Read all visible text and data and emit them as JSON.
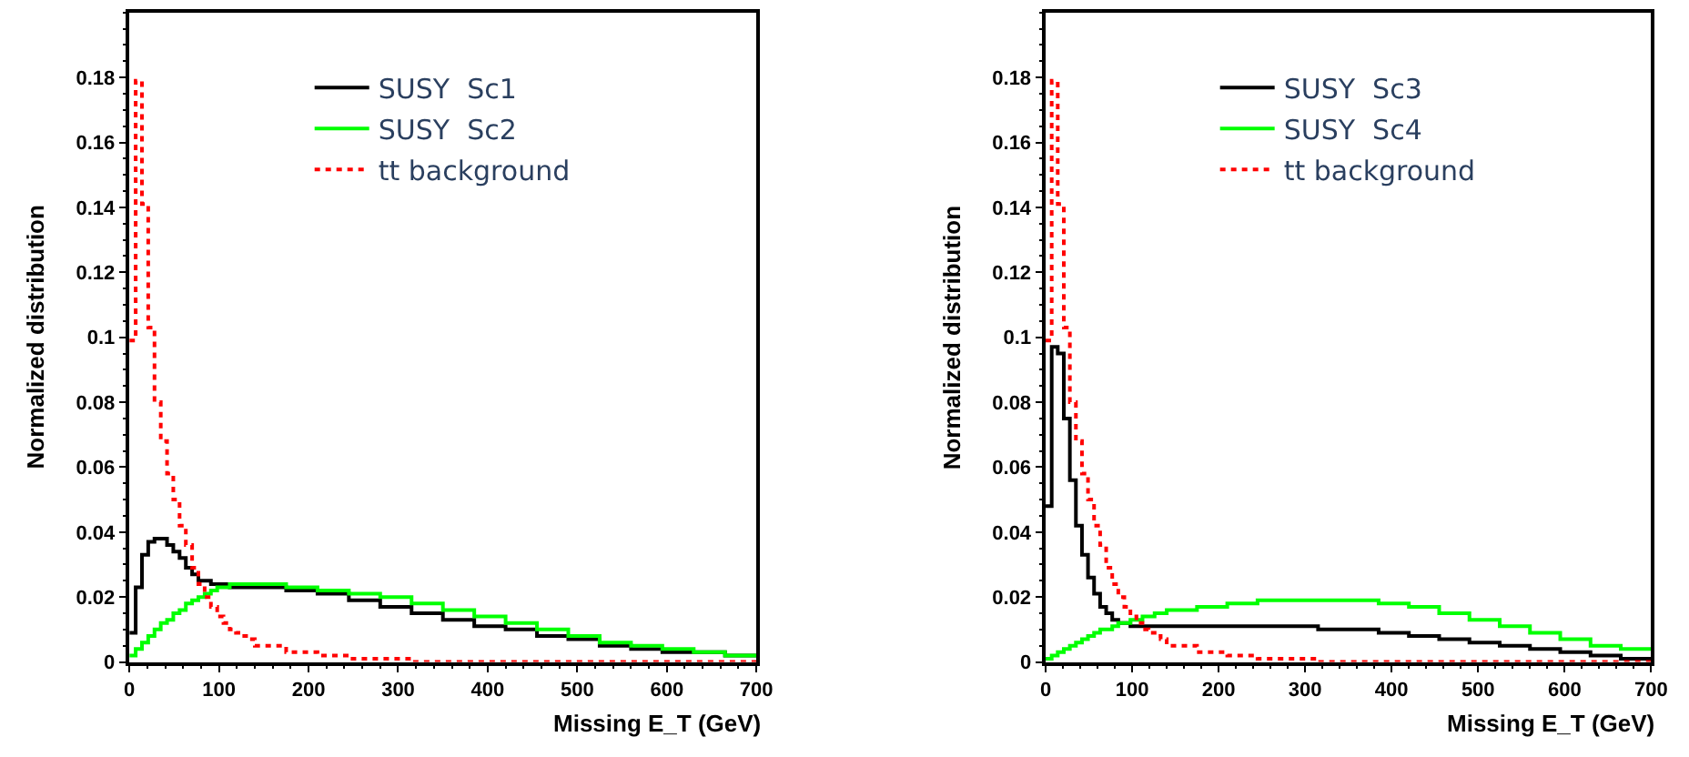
{
  "chart_data": [
    {
      "type": "histogram",
      "xlabel": "Missing E_T (GeV)",
      "ylabel": "Normalized distribution",
      "bins": [
        0,
        7,
        14,
        21,
        28,
        35,
        42,
        49,
        56,
        63,
        70,
        77,
        84,
        91,
        98,
        105,
        112,
        119,
        126,
        133,
        140,
        175,
        210,
        245,
        280,
        315,
        350,
        385,
        420,
        455,
        490,
        525,
        560,
        595,
        630,
        665,
        700
      ],
      "series": [
        {
          "name": "SUSY  Sc1",
          "color": "#000000",
          "line_style": "solid",
          "values": [
            0.009,
            0.023,
            0.033,
            0.037,
            0.038,
            0.038,
            0.036,
            0.034,
            0.032,
            0.029,
            0.027,
            0.025,
            0.025,
            0.024,
            0.024,
            0.024,
            0.023,
            0.023,
            0.023,
            0.023,
            0.023,
            0.022,
            0.021,
            0.019,
            0.017,
            0.015,
            0.013,
            0.011,
            0.01,
            0.008,
            0.007,
            0.005,
            0.004,
            0.003,
            0.003,
            0.002
          ]
        },
        {
          "name": "SUSY  Sc2",
          "color": "#00ff00",
          "line_style": "solid",
          "values": [
            0.002,
            0.004,
            0.006,
            0.008,
            0.01,
            0.012,
            0.013,
            0.015,
            0.016,
            0.018,
            0.019,
            0.02,
            0.021,
            0.022,
            0.023,
            0.023,
            0.024,
            0.024,
            0.024,
            0.024,
            0.024,
            0.023,
            0.022,
            0.021,
            0.02,
            0.018,
            0.016,
            0.014,
            0.012,
            0.01,
            0.008,
            0.006,
            0.005,
            0.004,
            0.003,
            0.002
          ]
        },
        {
          "name": "tt background",
          "color": "#ff0000",
          "line_style": "dotted",
          "values": [
            0.099,
            0.179,
            0.141,
            0.103,
            0.08,
            0.068,
            0.058,
            0.05,
            0.042,
            0.036,
            0.029,
            0.024,
            0.02,
            0.017,
            0.014,
            0.012,
            0.01,
            0.009,
            0.008,
            0.007,
            0.005,
            0.003,
            0.002,
            0.001,
            0.001,
            0,
            0,
            0,
            0,
            0,
            0,
            0,
            0,
            0,
            0,
            0
          ]
        }
      ],
      "xlim": [
        0,
        700
      ],
      "xticks": [
        0,
        100,
        200,
        300,
        400,
        500,
        600,
        700
      ],
      "ylim": [
        0,
        0.2
      ],
      "yticks": [
        0,
        0.02,
        0.04,
        0.06,
        0.08,
        0.1,
        0.12,
        0.14,
        0.16,
        0.18
      ],
      "legend": "top"
    },
    {
      "type": "histogram",
      "xlabel": "Missing E_T (GeV)",
      "ylabel": "Normalized distribution",
      "bins": [
        0,
        7,
        14,
        21,
        28,
        35,
        42,
        49,
        56,
        63,
        70,
        77,
        84,
        91,
        98,
        105,
        112,
        119,
        126,
        133,
        140,
        175,
        210,
        245,
        280,
        315,
        350,
        385,
        420,
        455,
        490,
        525,
        560,
        595,
        630,
        665,
        700
      ],
      "series": [
        {
          "name": "SUSY  Sc3",
          "color": "#000000",
          "line_style": "solid",
          "values": [
            0.048,
            0.097,
            0.095,
            0.075,
            0.056,
            0.042,
            0.033,
            0.026,
            0.021,
            0.017,
            0.015,
            0.013,
            0.012,
            0.012,
            0.011,
            0.011,
            0.011,
            0.011,
            0.011,
            0.011,
            0.011,
            0.011,
            0.011,
            0.011,
            0.011,
            0.01,
            0.01,
            0.009,
            0.008,
            0.007,
            0.006,
            0.005,
            0.004,
            0.003,
            0.002,
            0.001
          ]
        },
        {
          "name": "SUSY  Sc4",
          "color": "#00ff00",
          "line_style": "solid",
          "values": [
            0.001,
            0.002,
            0.003,
            0.004,
            0.005,
            0.006,
            0.007,
            0.008,
            0.009,
            0.01,
            0.01,
            0.011,
            0.012,
            0.012,
            0.013,
            0.013,
            0.014,
            0.014,
            0.015,
            0.015,
            0.016,
            0.017,
            0.018,
            0.019,
            0.019,
            0.019,
            0.019,
            0.018,
            0.017,
            0.015,
            0.013,
            0.011,
            0.009,
            0.007,
            0.005,
            0.004
          ]
        },
        {
          "name": "tt background",
          "color": "#ff0000",
          "line_style": "dotted",
          "values": [
            0.099,
            0.179,
            0.141,
            0.103,
            0.08,
            0.068,
            0.058,
            0.05,
            0.042,
            0.036,
            0.029,
            0.024,
            0.02,
            0.017,
            0.014,
            0.012,
            0.01,
            0.009,
            0.008,
            0.007,
            0.005,
            0.003,
            0.002,
            0.001,
            0.001,
            0,
            0,
            0,
            0,
            0,
            0,
            0,
            0,
            0,
            0,
            0
          ]
        }
      ],
      "xlim": [
        0,
        700
      ],
      "xticks": [
        0,
        100,
        200,
        300,
        400,
        500,
        600,
        700
      ],
      "ylim": [
        0,
        0.2
      ],
      "yticks": [
        0,
        0.02,
        0.04,
        0.06,
        0.08,
        0.1,
        0.12,
        0.14,
        0.16,
        0.18
      ],
      "legend": "top"
    }
  ]
}
